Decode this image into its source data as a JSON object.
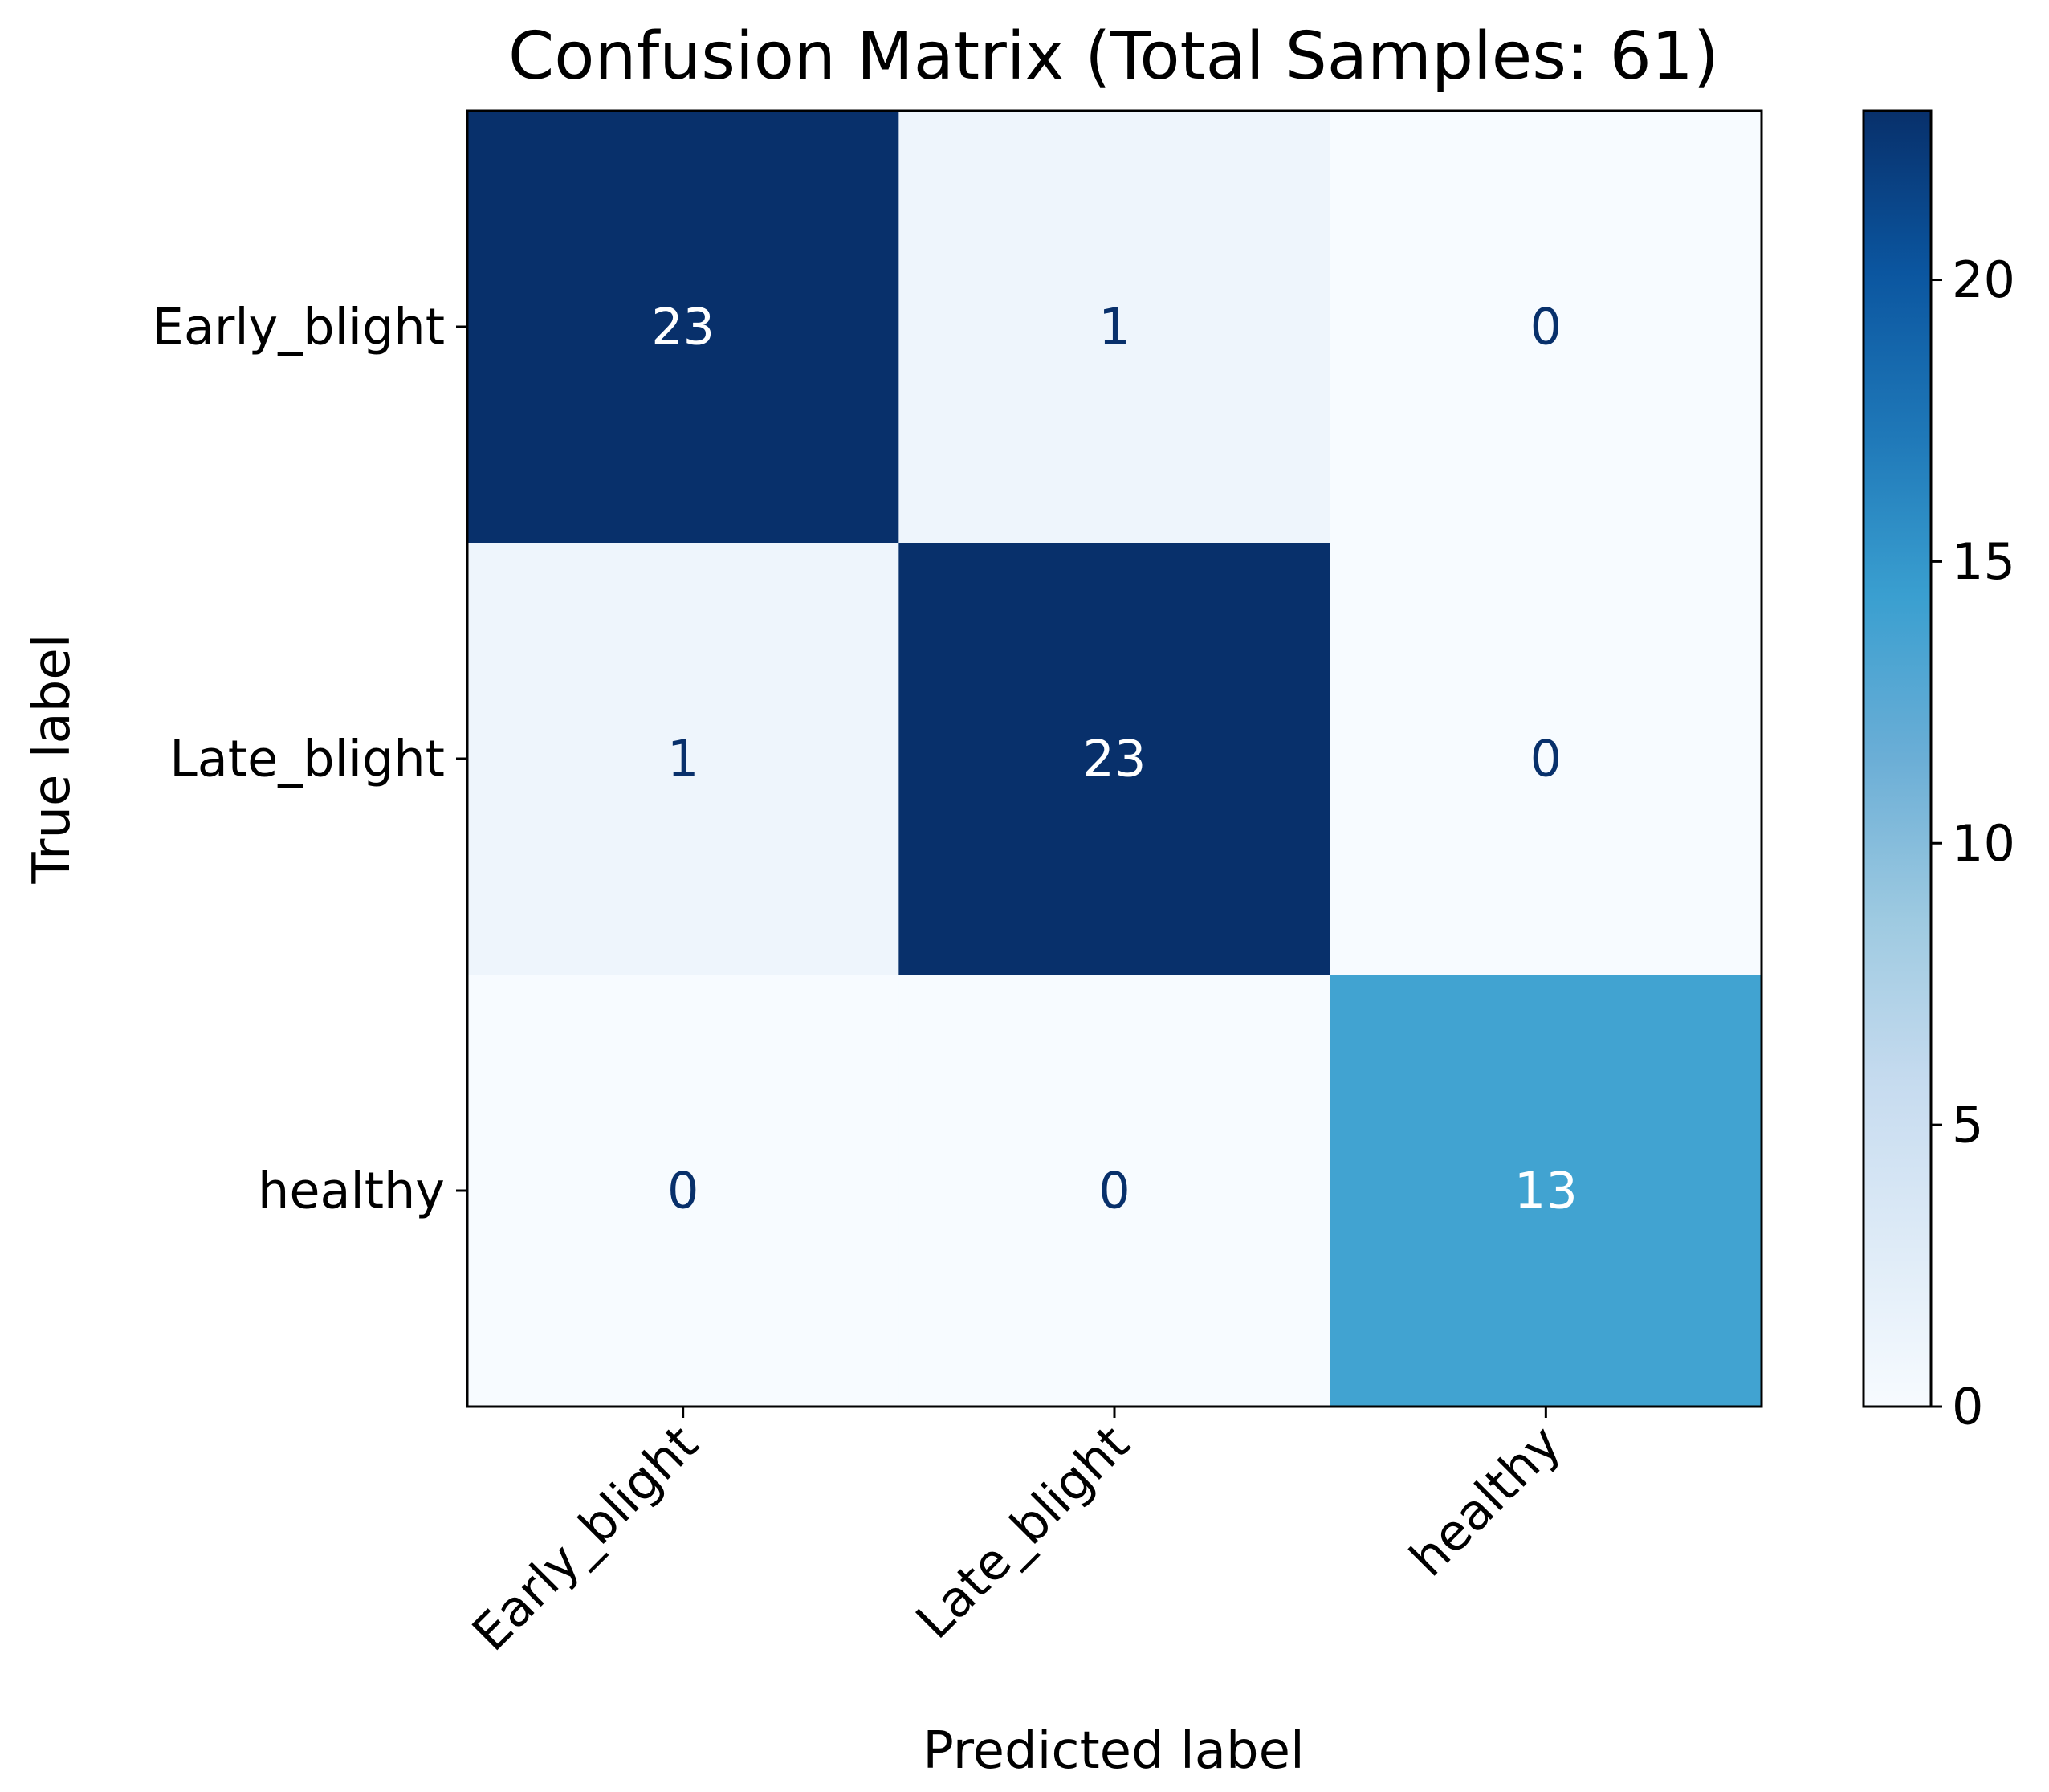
{
  "chart_data": {
    "type": "heatmap",
    "title": "Confusion Matrix (Total Samples: 61)",
    "xlabel": "Predicted label",
    "ylabel": "True label",
    "x_categories": [
      "Early_blight",
      "Late_blight",
      "healthy"
    ],
    "y_categories": [
      "Early_blight",
      "Late_blight",
      "healthy"
    ],
    "values": [
      [
        23,
        1,
        0
      ],
      [
        1,
        23,
        0
      ],
      [
        0,
        0,
        13
      ]
    ],
    "colormap": "Blues",
    "value_range": [
      0,
      23
    ],
    "colorbar": {
      "ticks": [
        0,
        5,
        10,
        15,
        20
      ],
      "tick_labels": [
        "0",
        "5",
        "10",
        "15",
        "20"
      ]
    }
  }
}
